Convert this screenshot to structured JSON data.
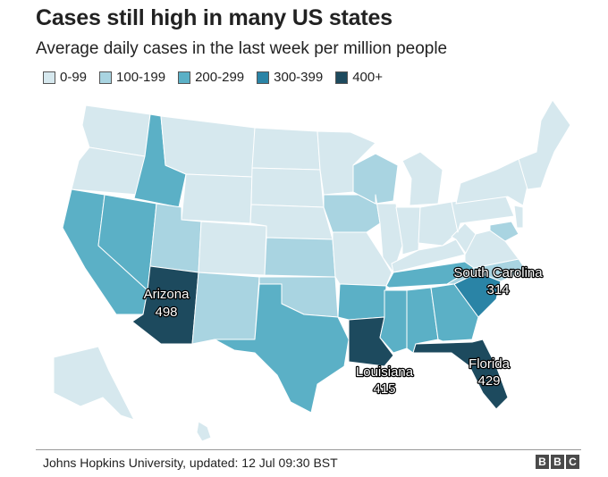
{
  "title": "Cases still high in many US states",
  "subtitle": "Average daily cases in the last week per million people",
  "legend": [
    {
      "label": "0-99",
      "color": "#d6e8ee"
    },
    {
      "label": "100-199",
      "color": "#a9d4e1"
    },
    {
      "label": "200-299",
      "color": "#5bb0c6"
    },
    {
      "label": "300-399",
      "color": "#2a84a6"
    },
    {
      "label": "400+",
      "color": "#1d4a5e"
    }
  ],
  "callouts": {
    "arizona": {
      "name": "Arizona",
      "value": "498"
    },
    "louisiana": {
      "name": "Louisiana",
      "value": "415"
    },
    "south_carolina": {
      "name": "South Carolina",
      "value": "314"
    },
    "florida": {
      "name": "Florida",
      "value": "429"
    }
  },
  "source": "Johns Hopkins University, updated: 12 Jul 09:30 BST",
  "logo": {
    "letters": [
      "B",
      "B",
      "C"
    ]
  }
}
